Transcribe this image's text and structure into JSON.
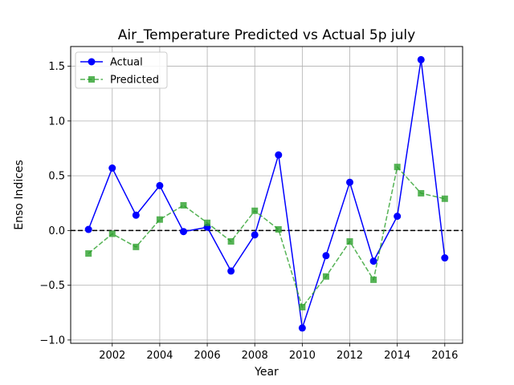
{
  "chart_data": {
    "type": "line",
    "title": "Air_Temperature Predicted vs Actual 5p july",
    "xlabel": "Year",
    "ylabel": "Enso Indices",
    "x": [
      2001,
      2002,
      2003,
      2004,
      2005,
      2006,
      2007,
      2008,
      2009,
      2010,
      2011,
      2012,
      2013,
      2014,
      2015,
      2016
    ],
    "series": [
      {
        "name": "Actual",
        "color": "#0000ff",
        "style": "solid",
        "marker": "circle",
        "values": [
          0.01,
          0.57,
          0.14,
          0.41,
          -0.01,
          0.03,
          -0.37,
          -0.04,
          0.69,
          -0.89,
          -0.23,
          0.44,
          -0.28,
          0.13,
          1.56,
          -0.25
        ]
      },
      {
        "name": "Predicted",
        "color": "#2ca02c",
        "style": "dashed",
        "marker": "square",
        "values": [
          -0.21,
          -0.03,
          -0.15,
          0.1,
          0.23,
          0.07,
          -0.1,
          0.18,
          0.01,
          -0.7,
          -0.42,
          -0.1,
          -0.45,
          0.58,
          0.34,
          0.29
        ]
      }
    ],
    "xlim": [
      2000.25,
      2016.75
    ],
    "ylim": [
      -1.03,
      1.68
    ],
    "xticks": [
      "2002",
      "2004",
      "2006",
      "2008",
      "2010",
      "2012",
      "2014",
      "2016"
    ],
    "yticks": [
      "−1.0",
      "−0.5",
      "0.0",
      "0.5",
      "1.0",
      "1.5"
    ],
    "grid": true,
    "zero_line": true,
    "legend_position": "top-left"
  }
}
